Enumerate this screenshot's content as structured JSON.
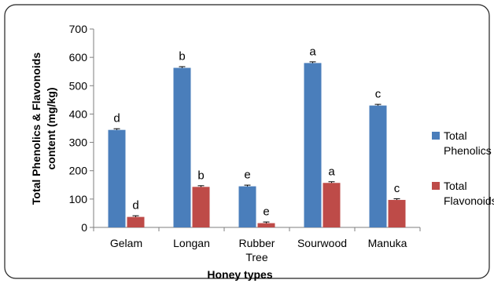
{
  "chart_data": {
    "type": "bar",
    "categories": [
      "Gelam",
      "Longan",
      "Rubber Tree",
      "Sourwood",
      "Manuka"
    ],
    "series": [
      {
        "name": "Total Phenolics",
        "color": "#4A7EBB",
        "values": [
          344,
          563,
          145,
          580,
          430
        ],
        "labels": [
          "d",
          "b",
          "e",
          "a",
          "c"
        ]
      },
      {
        "name": "Total Flavonoids",
        "color": "#BE4B48",
        "values": [
          37,
          143,
          15,
          157,
          97
        ],
        "labels": [
          "d",
          "b",
          "e",
          "a",
          "c"
        ]
      }
    ],
    "xlabel": "Honey types",
    "ylabel": "Total Phenolics & Flavonoids content (mg/kg)",
    "ylim": [
      0,
      700
    ],
    "yticks": [
      0,
      100,
      200,
      300,
      400,
      500,
      600,
      700
    ],
    "grid": false,
    "error_bars": true,
    "legend_position": "right"
  }
}
